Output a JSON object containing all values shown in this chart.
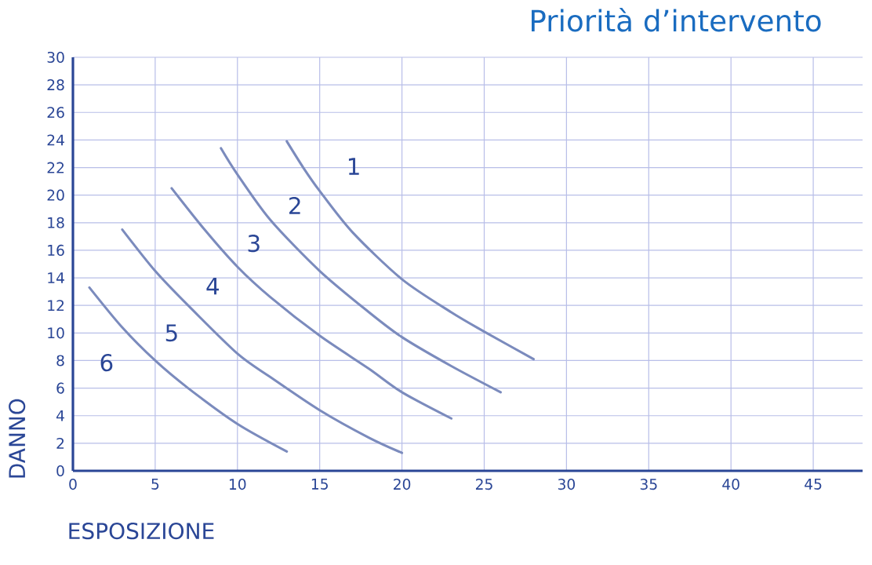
{
  "chart_data": {
    "type": "line",
    "title": "Priorità d’intervento",
    "xlabel": "ESPOSIZIONE",
    "ylabel": "DANNO",
    "xlim": [
      0,
      48
    ],
    "ylim": [
      0,
      30
    ],
    "xticks": [
      0,
      5,
      10,
      15,
      20,
      25,
      30,
      35,
      40,
      45
    ],
    "yticks": [
      0,
      2,
      4,
      6,
      8,
      10,
      12,
      14,
      16,
      18,
      20,
      22,
      24,
      26,
      28,
      30
    ],
    "grid": true,
    "marker": "none",
    "line_style": "solid",
    "series": [
      {
        "color": "#7b8bbd",
        "x": [
          13,
          14,
          15,
          17,
          20,
          23,
          25,
          28
        ],
        "values": [
          23.9,
          22,
          20.3,
          17.3,
          13.9,
          11.5,
          10.1,
          8.1
        ]
      },
      {
        "color": "#7b8bbd",
        "x": [
          9,
          10,
          12,
          15,
          18,
          20,
          23,
          26
        ],
        "values": [
          23.4,
          21.5,
          18.2,
          14.5,
          11.5,
          9.7,
          7.6,
          5.7
        ]
      },
      {
        "color": "#7b8bbd",
        "x": [
          6,
          8,
          10,
          12,
          15,
          18,
          20,
          23
        ],
        "values": [
          20.5,
          17.5,
          14.8,
          12.6,
          9.8,
          7.4,
          5.7,
          3.8
        ]
      },
      {
        "color": "#7b8bbd",
        "x": [
          3,
          5,
          7,
          10,
          12,
          15,
          18,
          20
        ],
        "values": [
          17.5,
          14.5,
          12,
          8.5,
          6.8,
          4.4,
          2.4,
          1.3
        ]
      },
      {
        "color": "#7b8bbd",
        "x": [
          1,
          3,
          5,
          7,
          10,
          13
        ],
        "values": [
          13.3,
          10.4,
          8.0,
          6.0,
          3.4,
          1.4
        ]
      }
    ],
    "annotations": [
      "1",
      "2",
      "3",
      "4",
      "5",
      "6"
    ]
  }
}
